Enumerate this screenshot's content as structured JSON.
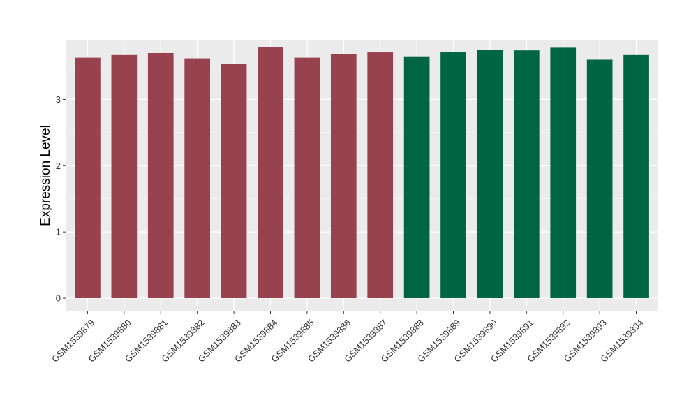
{
  "chart_data": {
    "type": "bar",
    "title": "",
    "xlabel": "",
    "ylabel": "Expression Level",
    "ylim": [
      -0.2,
      3.9
    ],
    "yticks": [
      0,
      1,
      2,
      3
    ],
    "grid": true,
    "panel_background": "#ebebeb",
    "categories": [
      "GSM1539879",
      "GSM1539880",
      "GSM1539881",
      "GSM1539882",
      "GSM1539883",
      "GSM1539884",
      "GSM1539885",
      "GSM1539886",
      "GSM1539887",
      "GSM1539888",
      "GSM1539889",
      "GSM1539890",
      "GSM1539891",
      "GSM1539892",
      "GSM1539893",
      "GSM1539894"
    ],
    "values": [
      3.63,
      3.67,
      3.7,
      3.62,
      3.54,
      3.79,
      3.63,
      3.68,
      3.71,
      3.65,
      3.71,
      3.75,
      3.74,
      3.78,
      3.6,
      3.67
    ],
    "bar_colors": [
      "#99424f",
      "#99424f",
      "#99424f",
      "#99424f",
      "#99424f",
      "#99424f",
      "#99424f",
      "#99424f",
      "#99424f",
      "#006543",
      "#006543",
      "#006543",
      "#006543",
      "#006543",
      "#006543",
      "#006543"
    ]
  }
}
